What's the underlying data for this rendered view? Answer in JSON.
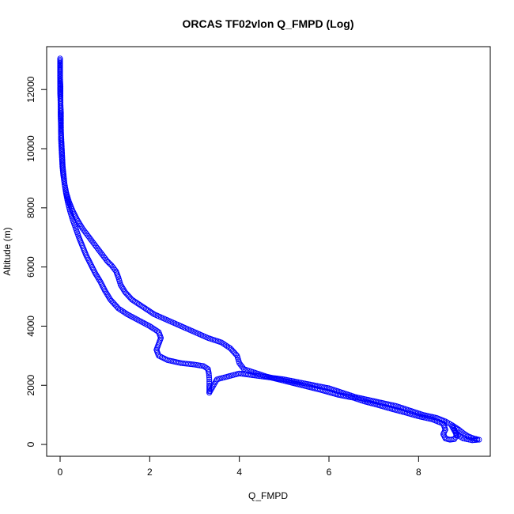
{
  "chart_data": {
    "type": "scatter",
    "title": "ORCAS TF02vlon Q_FMPD (Log)",
    "xlabel": "Q_FMPD",
    "ylabel": "Altitude (m)",
    "xlim": [
      -0.3,
      9.6
    ],
    "ylim": [
      -400,
      13450
    ],
    "x_ticks": [
      0,
      2,
      4,
      6,
      8
    ],
    "y_ticks": [
      0,
      2000,
      4000,
      6000,
      8000,
      10000,
      12000
    ],
    "marker": "open-circle",
    "color": "#0000ff",
    "grid": false,
    "legend": "none",
    "series": [
      {
        "points": [
          [
            0.0,
            13050
          ],
          [
            0.0,
            12950
          ],
          [
            0.0,
            12800
          ],
          [
            0.0,
            12600
          ],
          [
            0.0,
            12400
          ],
          [
            0.01,
            12100
          ],
          [
            0.01,
            11800
          ],
          [
            0.01,
            11500
          ],
          [
            0.02,
            11200
          ],
          [
            0.02,
            10900
          ],
          [
            0.02,
            10600
          ],
          [
            0.03,
            10300
          ],
          [
            0.04,
            10000
          ],
          [
            0.05,
            9700
          ],
          [
            0.06,
            9400
          ],
          [
            0.08,
            9100
          ],
          [
            0.1,
            8800
          ],
          [
            0.13,
            8500
          ],
          [
            0.17,
            8200
          ],
          [
            0.22,
            7900
          ],
          [
            0.28,
            7600
          ],
          [
            0.35,
            7300
          ],
          [
            0.42,
            7000
          ],
          [
            0.5,
            6700
          ],
          [
            0.58,
            6400
          ],
          [
            0.68,
            6100
          ],
          [
            0.78,
            5800
          ],
          [
            0.9,
            5500
          ],
          [
            1.0,
            5200
          ],
          [
            1.12,
            4900
          ],
          [
            1.3,
            4600
          ],
          [
            1.5,
            4400
          ],
          [
            1.75,
            4200
          ],
          [
            2.0,
            4000
          ],
          [
            2.2,
            3800
          ],
          [
            2.25,
            3600
          ],
          [
            2.2,
            3400
          ],
          [
            2.15,
            3200
          ],
          [
            2.2,
            3000
          ],
          [
            2.4,
            2850
          ],
          [
            2.7,
            2750
          ],
          [
            3.0,
            2700
          ],
          [
            3.2,
            2650
          ],
          [
            3.3,
            2550
          ],
          [
            3.32,
            2400
          ],
          [
            3.33,
            2200
          ],
          [
            3.33,
            2000
          ],
          [
            3.33,
            1850
          ],
          [
            3.33,
            1750
          ]
        ]
      },
      {
        "points": [
          [
            3.33,
            1750
          ],
          [
            3.5,
            2200
          ],
          [
            4.0,
            2400
          ],
          [
            4.5,
            2300
          ],
          [
            5.0,
            2200
          ],
          [
            5.5,
            2050
          ],
          [
            6.0,
            1900
          ],
          [
            6.3,
            1750
          ],
          [
            6.6,
            1600
          ],
          [
            6.9,
            1500
          ],
          [
            7.2,
            1400
          ],
          [
            7.5,
            1300
          ],
          [
            7.8,
            1150
          ],
          [
            8.1,
            1000
          ],
          [
            8.4,
            900
          ],
          [
            8.6,
            780
          ],
          [
            8.75,
            650
          ],
          [
            8.9,
            500
          ],
          [
            9.0,
            380
          ],
          [
            9.1,
            280
          ],
          [
            9.2,
            220
          ],
          [
            9.35,
            160
          ],
          [
            9.2,
            140
          ],
          [
            9.0,
            200
          ],
          [
            8.85,
            330
          ],
          [
            8.75,
            600
          ],
          [
            8.8,
            500
          ],
          [
            8.85,
            300
          ],
          [
            8.8,
            180
          ],
          [
            8.7,
            160
          ],
          [
            8.6,
            200
          ],
          [
            8.55,
            350
          ],
          [
            8.6,
            500
          ],
          [
            8.55,
            700
          ],
          [
            8.3,
            850
          ],
          [
            8.0,
            950
          ],
          [
            7.7,
            1080
          ],
          [
            7.4,
            1200
          ],
          [
            7.1,
            1330
          ],
          [
            6.8,
            1450
          ],
          [
            6.6,
            1550
          ]
        ]
      },
      {
        "points": [
          [
            6.6,
            1560
          ],
          [
            6.2,
            1680
          ],
          [
            5.8,
            1850
          ],
          [
            5.4,
            2000
          ],
          [
            5.0,
            2150
          ],
          [
            4.6,
            2300
          ],
          [
            4.3,
            2450
          ],
          [
            4.1,
            2550
          ],
          [
            4.0,
            2750
          ],
          [
            3.95,
            3000
          ],
          [
            3.8,
            3250
          ],
          [
            3.6,
            3450
          ],
          [
            3.3,
            3600
          ],
          [
            3.0,
            3800
          ],
          [
            2.7,
            4000
          ],
          [
            2.4,
            4200
          ],
          [
            2.1,
            4400
          ],
          [
            1.85,
            4650
          ],
          [
            1.6,
            4900
          ],
          [
            1.45,
            5150
          ],
          [
            1.35,
            5400
          ],
          [
            1.3,
            5650
          ],
          [
            1.25,
            5850
          ],
          [
            1.15,
            6050
          ],
          [
            1.05,
            6200
          ],
          [
            0.95,
            6400
          ],
          [
            0.8,
            6700
          ],
          [
            0.65,
            7000
          ],
          [
            0.5,
            7300
          ],
          [
            0.38,
            7600
          ],
          [
            0.28,
            7900
          ],
          [
            0.2,
            8200
          ],
          [
            0.14,
            8500
          ],
          [
            0.1,
            8800
          ],
          [
            0.07,
            9100
          ],
          [
            0.05,
            9400
          ],
          [
            0.04,
            9700
          ],
          [
            0.03,
            10000
          ],
          [
            0.02,
            10300
          ],
          [
            0.02,
            10700
          ],
          [
            0.01,
            11100
          ],
          [
            0.01,
            11500
          ],
          [
            0.0,
            11900
          ],
          [
            0.0,
            12300
          ],
          [
            0.0,
            12700
          ],
          [
            0.0,
            13000
          ]
        ]
      }
    ]
  }
}
